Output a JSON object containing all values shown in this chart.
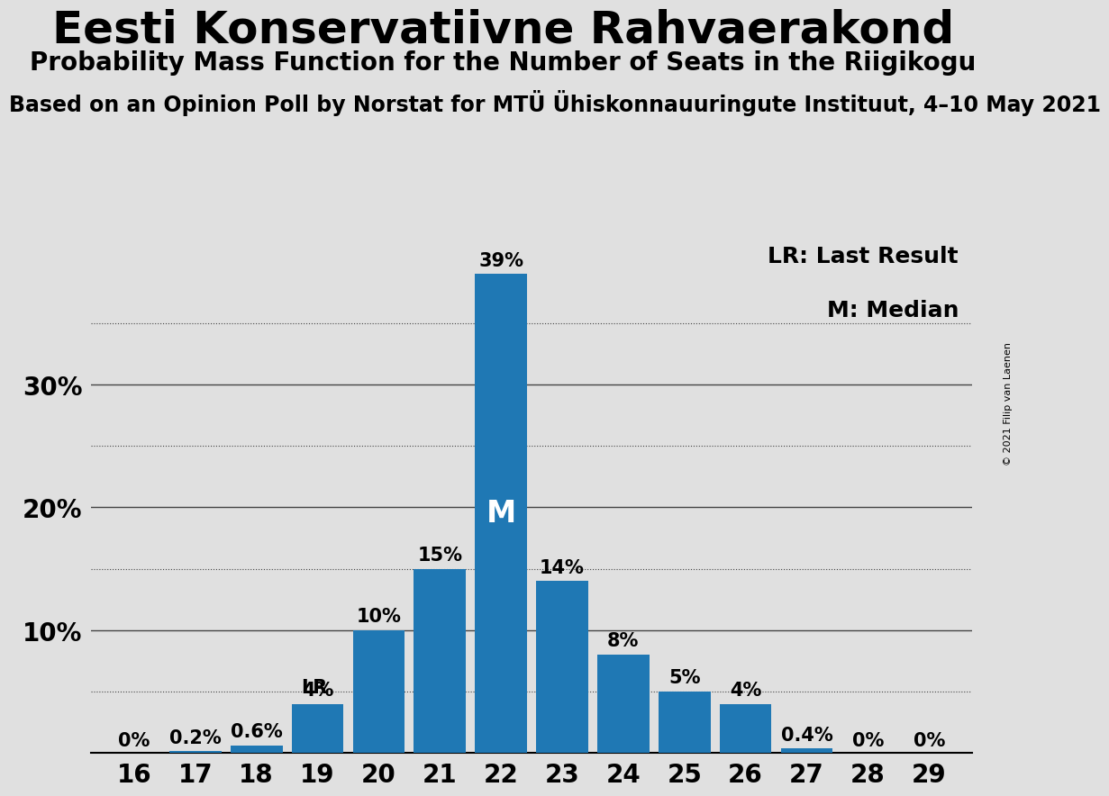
{
  "title": "Eesti Konservatiivne Rahvaerakond",
  "subtitle": "Probability Mass Function for the Number of Seats in the Riigikogu",
  "source": "Based on an Opinion Poll by Norstat for MTÜ Ühiskonnauuringute Instituut, 4–10 May 2021",
  "copyright": "© 2021 Filip van Laenen",
  "seats": [
    16,
    17,
    18,
    19,
    20,
    21,
    22,
    23,
    24,
    25,
    26,
    27,
    28,
    29
  ],
  "probabilities": [
    0.0,
    0.2,
    0.6,
    4.0,
    10.0,
    15.0,
    39.0,
    14.0,
    8.0,
    5.0,
    4.0,
    0.4,
    0.0,
    0.0
  ],
  "labels": [
    "0%",
    "0.2%",
    "0.6%",
    "4%",
    "10%",
    "15%",
    "39%",
    "14%",
    "8%",
    "5%",
    "4%",
    "0.4%",
    "0%",
    "0%"
  ],
  "bar_color": "#1f78b4",
  "background_color": "#e0e0e0",
  "median_seat": 22,
  "last_result_seat": 19,
  "ylim": [
    0,
    42
  ],
  "major_gridlines": [
    10,
    20,
    30
  ],
  "minor_gridlines": [
    5,
    15,
    25,
    35
  ],
  "title_fontsize": 36,
  "subtitle_fontsize": 20,
  "source_fontsize": 17,
  "bar_label_fontsize": 15,
  "tick_fontsize": 20,
  "legend_fontsize": 18,
  "ytick_vals": [
    10,
    20,
    30
  ],
  "ytick_labels": [
    "10%",
    "20%",
    "30%"
  ]
}
